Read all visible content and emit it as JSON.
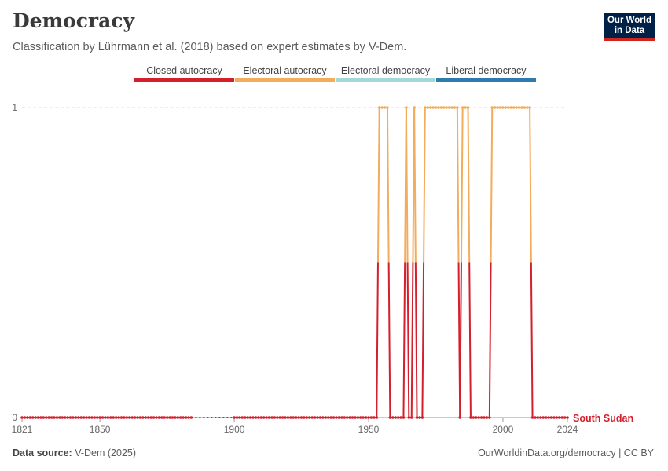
{
  "header": {
    "title": "Democracy",
    "subtitle": "Classification by Lührmann et al. (2018) based on expert estimates by V-Dem."
  },
  "logo": {
    "line1": "Our World",
    "line2": "in Data"
  },
  "footer": {
    "source_label": "Data source:",
    "source_value": "V-Dem (2025)",
    "url": "OurWorldinData.org/democracy | CC BY"
  },
  "colors": {
    "closed_autocracy": "#d3202c",
    "electoral_autocracy": "#f2ac5a",
    "electoral_democracy": "#a4d8d8",
    "liberal_democracy": "#2e7cad"
  },
  "chart_data": {
    "type": "line",
    "title": "Democracy",
    "entity": "South Sudan",
    "x_range": [
      1821,
      2024
    ],
    "ylim": [
      0,
      1
    ],
    "y_ticks": [
      "0",
      "1"
    ],
    "x_ticks": [
      "1821",
      "1850",
      "1900",
      "1950",
      "2000",
      "2024"
    ],
    "legend": {
      "placement": "top",
      "entries": [
        "Closed autocracy",
        "Electoral autocracy",
        "Electoral democracy",
        "Liberal democracy"
      ]
    },
    "gaps": [
      [
        1884,
        1900
      ]
    ],
    "category_index": {
      "0": "Closed autocracy",
      "1": "Electoral autocracy"
    },
    "electoral_autocracy_periods": [
      [
        1954,
        1957
      ],
      [
        1964,
        1964
      ],
      [
        1967,
        1967
      ],
      [
        1971,
        1983
      ],
      [
        1985,
        1987
      ],
      [
        1996,
        2010
      ]
    ],
    "note": "Value is 1 (electoral autocracy) during listed periods and 0 (closed autocracy) in all other years with data."
  }
}
